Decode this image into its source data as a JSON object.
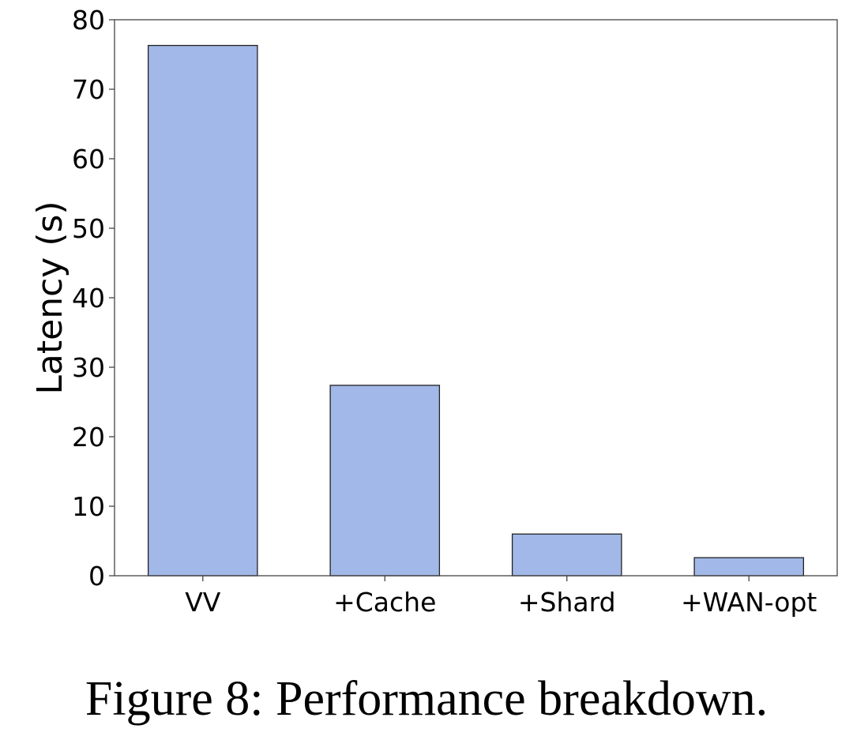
{
  "chart_data": {
    "type": "bar",
    "categories": [
      "VV",
      "+Cache",
      "+Shard",
      "+WAN-opt"
    ],
    "values": [
      76.3,
      27.4,
      6.0,
      2.6
    ],
    "xlabel": "",
    "ylabel": "Latency (s)",
    "ylim": [
      0,
      80
    ],
    "yticks": [
      0,
      10,
      20,
      30,
      40,
      50,
      60,
      70,
      80
    ],
    "grid": false,
    "bar_color": "#a2b8e8",
    "edge_color": "#222222"
  },
  "caption": "Figure 8: Performance breakdown."
}
